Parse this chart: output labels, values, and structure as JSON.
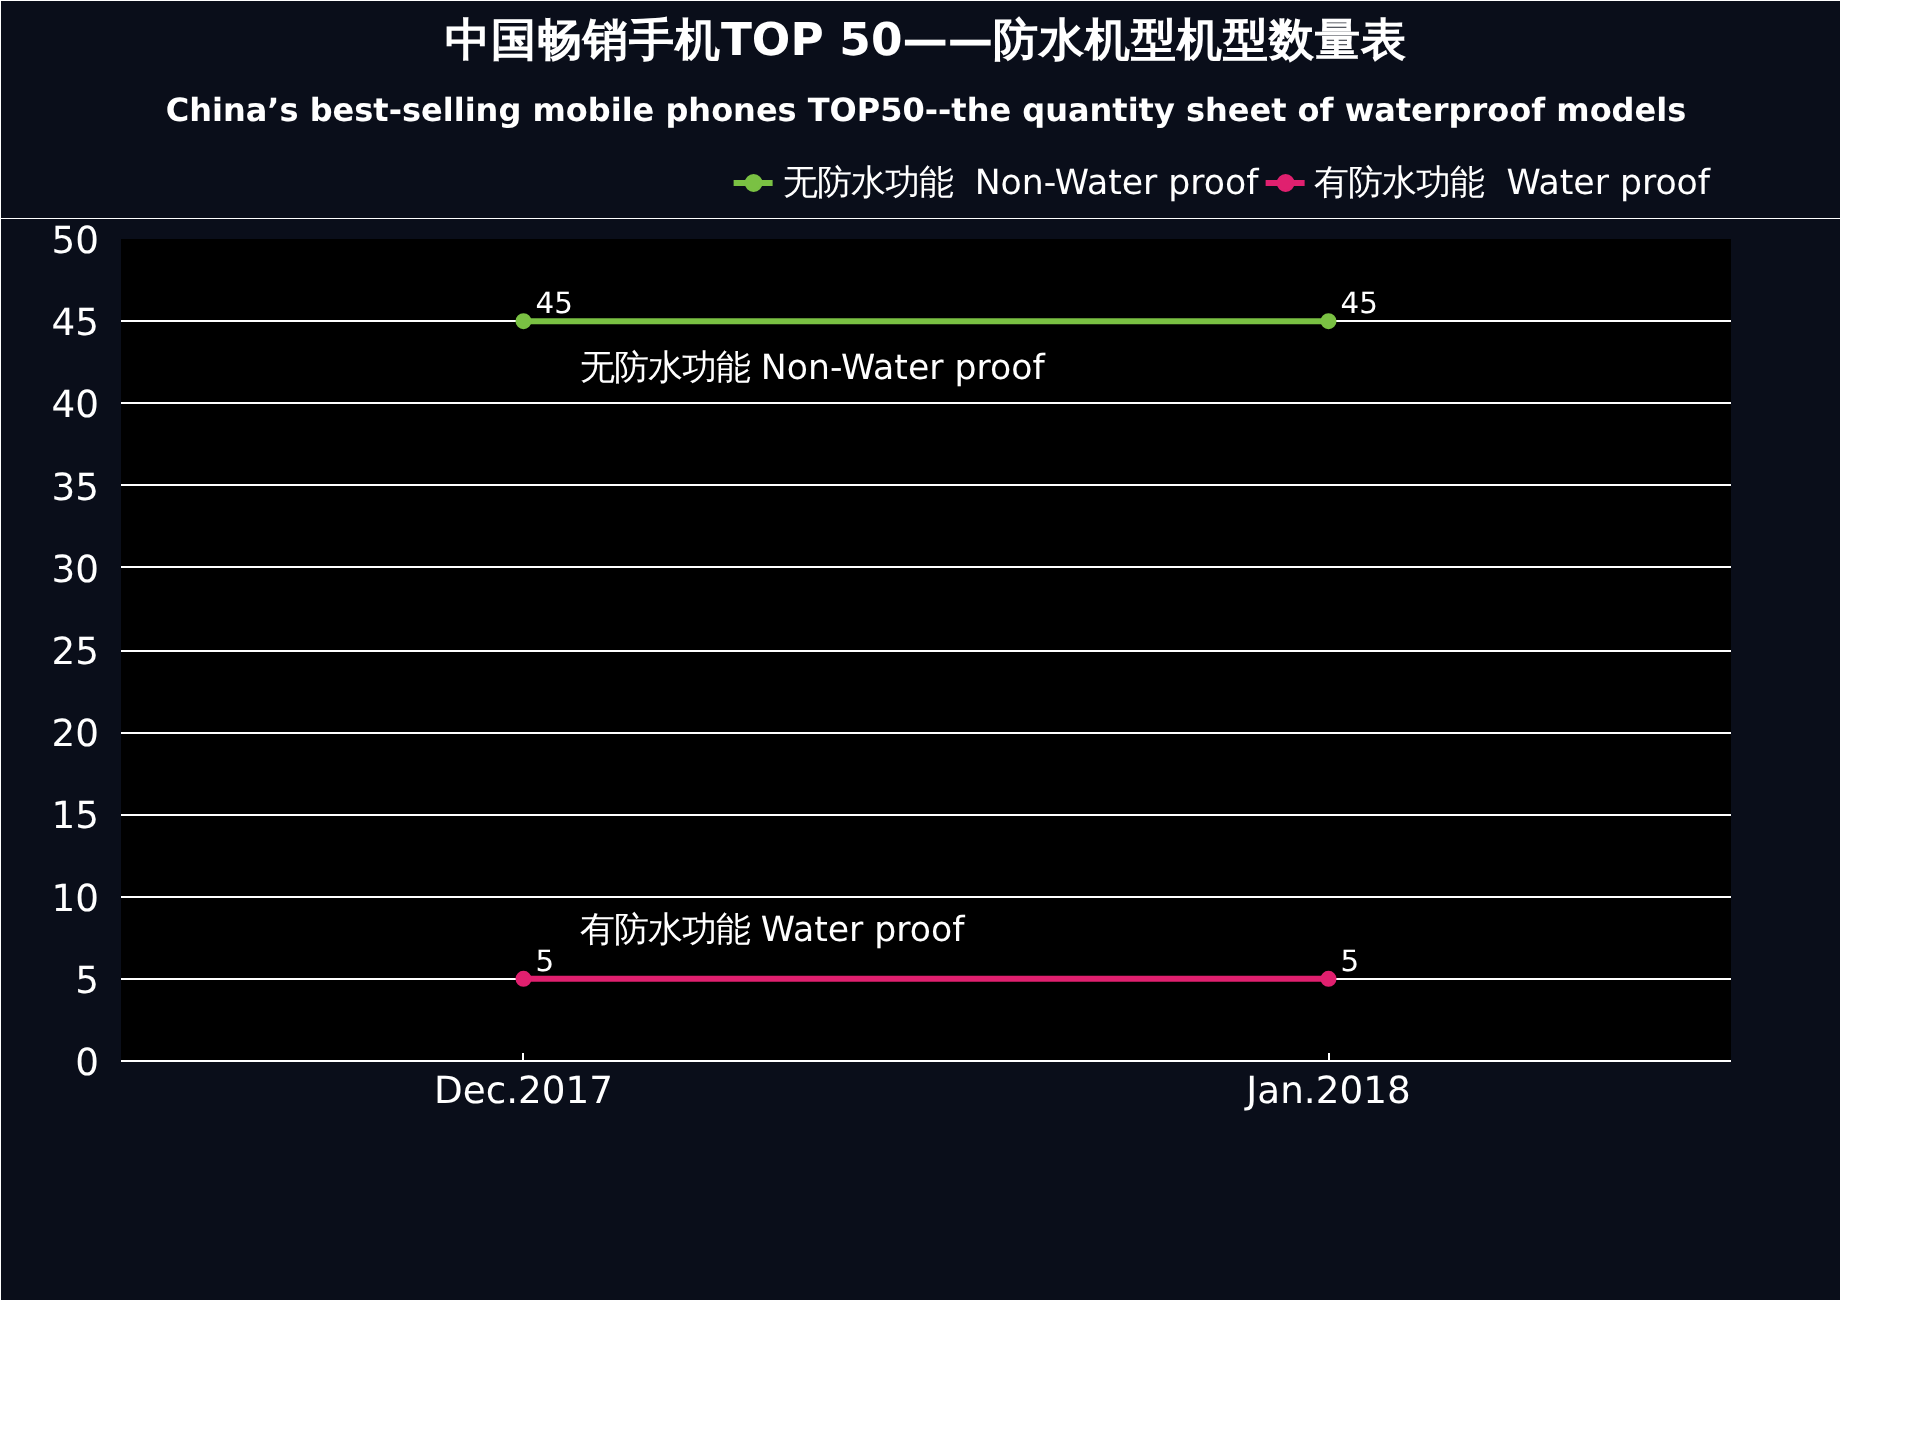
{
  "chart_data": {
    "type": "line",
    "title": "中国畅销手机TOP 50——防水机型机型数量表",
    "subtitle": "China’s best-selling mobile phones TOP50--the quantity sheet of waterproof models",
    "categories": [
      "Dec.2017",
      "Jan.2018"
    ],
    "series": [
      {
        "name": "无防水功能  Non-Water proof",
        "color": "#7ac143",
        "values": [
          45,
          45
        ]
      },
      {
        "name": "有防水功能  Water proof",
        "color": "#e0206f",
        "values": [
          5,
          5
        ]
      }
    ],
    "ylim": [
      0,
      50
    ],
    "yticks": [
      0,
      5,
      10,
      15,
      20,
      25,
      30,
      35,
      40,
      45,
      50
    ],
    "grid": "y",
    "legend": "top",
    "marker": "circle",
    "line_style": "solid",
    "data_labels": true
  }
}
